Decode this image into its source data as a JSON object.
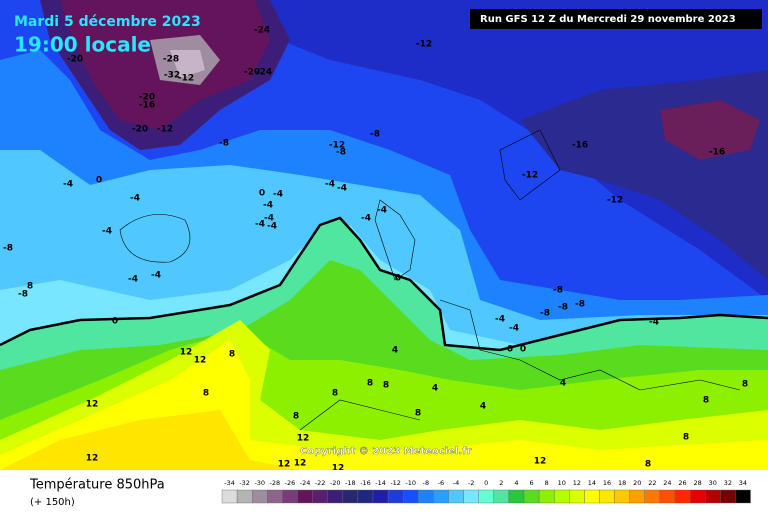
{
  "header": {
    "date": "Mardi 5 décembre 2023",
    "time": "19:00 locale",
    "run": "Run GFS 12 Z du Mercredi 29 novembre 2023"
  },
  "map": {
    "copyright": "Copyright © 2023 Meteociel.fr",
    "contour_labels": [
      -24,
      -12,
      -20,
      -28,
      -32,
      -12,
      -20,
      -24,
      -20,
      -16,
      -20,
      -12,
      -8,
      -8,
      -12,
      -8,
      -16,
      -16,
      -12,
      -12,
      -4,
      0,
      -4,
      0,
      -4,
      -4,
      -4,
      -4,
      -4,
      -4,
      -4,
      -4,
      -4,
      -4,
      -8,
      -4,
      -4,
      8,
      -8,
      0,
      -8,
      -8,
      -8,
      -8,
      -4,
      -4,
      -4,
      0,
      0,
      0,
      12,
      12,
      8,
      4,
      12,
      8,
      8,
      4,
      8,
      8,
      4,
      8,
      8,
      4,
      8,
      8,
      8,
      12,
      12,
      12,
      12,
      12,
      12,
      8
    ]
  },
  "footer": {
    "title": "Température 850hPa",
    "lead": "(+ 150h)"
  },
  "scale": {
    "ticks": [
      -34,
      -32,
      -30,
      -28,
      -26,
      -24,
      -22,
      -20,
      -18,
      -16,
      -14,
      -12,
      -10,
      -8,
      -6,
      -4,
      -2,
      0,
      2,
      4,
      6,
      8,
      10,
      12,
      14,
      16,
      18,
      20,
      22,
      24,
      26,
      28,
      30,
      32,
      34
    ],
    "colors": [
      "#dcdcdc",
      "#b4b4b4",
      "#a08ca0",
      "#8c648c",
      "#783c78",
      "#64145a",
      "#5a1e6e",
      "#3c1e78",
      "#28286e",
      "#1e2882",
      "#1e1eaa",
      "#1e3cdc",
      "#1450ff",
      "#1e82ff",
      "#28a0ff",
      "#50c8ff",
      "#78e6ff",
      "#64ffd2",
      "#50e6a0",
      "#28c83c",
      "#5adc1e",
      "#8cf000",
      "#b4ff00",
      "#dcff00",
      "#ffff00",
      "#ffe600",
      "#ffc800",
      "#ffa000",
      "#ff7800",
      "#ff5000",
      "#ff2800",
      "#e60000",
      "#b40000",
      "#780000",
      "#000000"
    ]
  }
}
